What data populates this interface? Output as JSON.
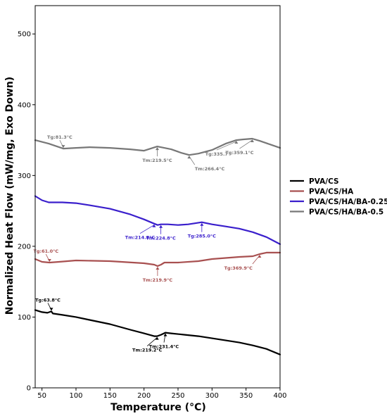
{
  "chart_data": {
    "type": "line",
    "title": "",
    "xlabel": "Temperature (°C)",
    "ylabel": "Normalized Heat Flow (mW/mg, Exo Down)",
    "xlim": [
      40,
      400
    ],
    "ylim": [
      0,
      540
    ],
    "xticks": [
      50,
      100,
      150,
      200,
      250,
      300,
      350,
      400
    ],
    "yticks": [
      0,
      100,
      200,
      300,
      400,
      500
    ],
    "grid": false,
    "legend_position": "center-right",
    "series": [
      {
        "name": "PVA/CS",
        "color": "#000000",
        "x": [
          40,
          50,
          58,
          63.8,
          66,
          80,
          100,
          120,
          150,
          180,
          200,
          215,
          219.2,
          225,
          231.4,
          240,
          260,
          280,
          300,
          320,
          340,
          360,
          380,
          400
        ],
        "y": [
          110,
          107,
          106,
          108,
          105,
          103,
          100,
          96,
          90,
          82,
          77,
          73,
          73,
          75,
          78,
          77,
          75,
          73,
          70,
          67,
          64,
          60,
          55,
          47
        ]
      },
      {
        "name": "PVA/CS/HA",
        "color": "#a85050",
        "x": [
          40,
          50,
          61,
          75,
          100,
          150,
          200,
          215,
          219.9,
          225,
          230,
          250,
          280,
          300,
          340,
          360,
          369.9,
          380,
          400
        ],
        "y": [
          182,
          178,
          177,
          178,
          180,
          179,
          176,
          174,
          172,
          174,
          177,
          177,
          179,
          182,
          185,
          186,
          189,
          191,
          191
        ]
      },
      {
        "name": "PVA/CS/HA/BA-0.25",
        "color": "#3a1fcc",
        "x": [
          40,
          50,
          60,
          80,
          100,
          120,
          150,
          180,
          200,
          214.8,
          220,
          224.8,
          235,
          250,
          265,
          285,
          300,
          320,
          340,
          360,
          380,
          400
        ],
        "y": [
          271,
          265,
          262,
          262,
          261,
          258,
          253,
          245,
          238,
          232,
          230,
          231,
          231,
          230,
          231,
          234,
          231,
          228,
          225,
          220,
          213,
          203
        ]
      },
      {
        "name": "PVA/CS/HA/BA-0.5",
        "color": "#777777",
        "x": [
          40,
          60,
          81.3,
          100,
          120,
          150,
          180,
          200,
          219.5,
          240,
          255,
          266.4,
          280,
          300,
          320,
          335.7,
          345,
          359.1,
          370,
          385,
          400
        ],
        "y": [
          350,
          345,
          338,
          339,
          340,
          339,
          337,
          335,
          341,
          337,
          332,
          329,
          331,
          336,
          345,
          350,
          351,
          352,
          349,
          344,
          339
        ]
      }
    ],
    "annotations": [
      {
        "series": 0,
        "x": 63.8,
        "y": 108,
        "label": "Tg:63.8°C"
      },
      {
        "series": 0,
        "x": 219.2,
        "y": 73,
        "label": "Tm:219.2°C"
      },
      {
        "series": 0,
        "x": 231.4,
        "y": 78,
        "label": "Tm:231.4°C"
      },
      {
        "series": 1,
        "x": 61.0,
        "y": 177,
        "label": "Tg:61.0°C"
      },
      {
        "series": 1,
        "x": 219.9,
        "y": 172,
        "label": "Tm:219.9°C"
      },
      {
        "series": 1,
        "x": 369.9,
        "y": 189,
        "label": "Tg:369.9°C"
      },
      {
        "series": 2,
        "x": 214.8,
        "y": 232,
        "label": "Tm:214.8°C"
      },
      {
        "series": 2,
        "x": 224.8,
        "y": 231,
        "label": "Tm:224.8°C"
      },
      {
        "series": 2,
        "x": 285.0,
        "y": 234,
        "label": "Tg:285.0°C"
      },
      {
        "series": 3,
        "x": 81.3,
        "y": 338,
        "label": "Tg:81.3°C"
      },
      {
        "series": 3,
        "x": 219.5,
        "y": 341,
        "label": "Tm:219.5°C"
      },
      {
        "series": 3,
        "x": 266.4,
        "y": 329,
        "label": "Tm:266.4°C"
      },
      {
        "series": 3,
        "x": 335.7,
        "y": 350,
        "label": "Tg:335.7"
      },
      {
        "series": 3,
        "x": 359.1,
        "y": 352,
        "label": "Tg:359.1°C"
      }
    ]
  }
}
